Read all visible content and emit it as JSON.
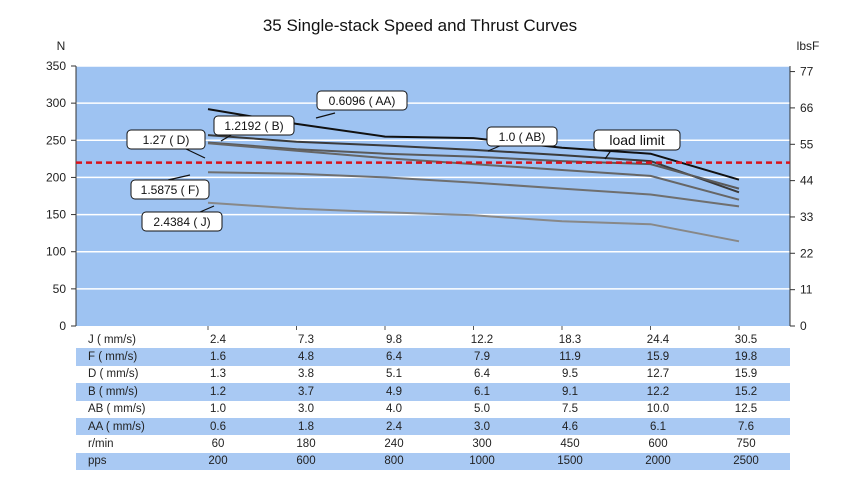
{
  "chart_data": {
    "type": "line",
    "title": "35 Single-stack Speed and Thrust Curves",
    "ylabel_left": "N",
    "ylabel_right": "lbsF",
    "ylim": [
      0,
      350
    ],
    "yticks_left": [
      0,
      50,
      100,
      150,
      200,
      250,
      300,
      350
    ],
    "yticks_right": [
      {
        "value": 0,
        "label": "0"
      },
      {
        "value": 48.9,
        "label": "11"
      },
      {
        "value": 97.9,
        "label": "22"
      },
      {
        "value": 146.8,
        "label": "33"
      },
      {
        "value": 195.7,
        "label": "44"
      },
      {
        "value": 244.6,
        "label": "55"
      },
      {
        "value": 293.6,
        "label": "66"
      },
      {
        "value": 342.5,
        "label": "77"
      }
    ],
    "x_steps": [
      200,
      600,
      800,
      1000,
      1500,
      2000,
      2500
    ],
    "load_limit": {
      "value": 220,
      "label": "load limit"
    },
    "series": [
      {
        "name": "0.6096 ( AA)",
        "x": [
          200,
          600,
          800,
          1000,
          1500,
          2000,
          2500
        ],
        "values": [
          292,
          272,
          255,
          253,
          240,
          232,
          197
        ],
        "color": "#111111",
        "width": 2
      },
      {
        "name": "1.2192 ( B)",
        "x": [
          200,
          600,
          800,
          1000,
          1500,
          2000,
          2500
        ],
        "values": [
          257,
          248,
          243,
          237,
          230,
          222,
          180
        ],
        "color": "#3a3a3a",
        "width": 2
      },
      {
        "name": "1.0 ( AB)",
        "x": [
          200,
          600,
          800,
          1000,
          1500,
          2000,
          2500
        ],
        "values": [
          247,
          238,
          232,
          228,
          222,
          218,
          185
        ],
        "color": "#5a5a5a",
        "width": 2
      },
      {
        "name": "1.27 ( D)",
        "x": [
          200,
          600,
          800,
          1000,
          1500,
          2000,
          2500
        ],
        "values": [
          246,
          236,
          226,
          218,
          210,
          202,
          170
        ],
        "color": "#666666",
        "width": 2
      },
      {
        "name": "1.5875 ( F)",
        "x": [
          200,
          600,
          800,
          1000,
          1500,
          2000,
          2500
        ],
        "values": [
          207,
          205,
          200,
          193,
          185,
          177,
          161
        ],
        "color": "#6f6f6f",
        "width": 2
      },
      {
        "name": "2.4384 ( J)",
        "x": [
          200,
          600,
          800,
          1000,
          1500,
          2000,
          2500
        ],
        "values": [
          166,
          158,
          153,
          149,
          141,
          137,
          114
        ],
        "color": "#888888",
        "width": 2
      }
    ],
    "callouts": [
      "0.6096 ( AA)",
      "1.2192 ( B)",
      "1.0 ( AB)",
      "1.27 ( D)",
      "1.5875 ( F)",
      "2.4384 ( J)"
    ]
  },
  "table": {
    "rows": [
      {
        "label": "J ( mm/s)",
        "values": [
          "2.4",
          "7.3",
          "9.8",
          "12.2",
          "18.3",
          "24.4",
          "30.5"
        ]
      },
      {
        "label": "F ( mm/s)",
        "values": [
          "1.6",
          "4.8",
          "6.4",
          "7.9",
          "11.9",
          "15.9",
          "19.8"
        ]
      },
      {
        "label": "D ( mm/s)",
        "values": [
          "1.3",
          "3.8",
          "5.1",
          "6.4",
          "9.5",
          "12.7",
          "15.9"
        ]
      },
      {
        "label": "B ( mm/s)",
        "values": [
          "1.2",
          "3.7",
          "4.9",
          "6.1",
          "9.1",
          "12.2",
          "15.2"
        ]
      },
      {
        "label": "AB ( mm/s)",
        "values": [
          "1.0",
          "3.0",
          "4.0",
          "5.0",
          "7.5",
          "10.0",
          "12.5"
        ]
      },
      {
        "label": "AA ( mm/s)",
        "values": [
          "0.6",
          "1.8",
          "2.4",
          "3.0",
          "4.6",
          "6.1",
          "7.6"
        ]
      },
      {
        "label": "r/min",
        "values": [
          "60",
          "180",
          "240",
          "300",
          "450",
          "600",
          "750"
        ]
      },
      {
        "label": "pps",
        "values": [
          "200",
          "600",
          "800",
          "1000",
          "1500",
          "2000",
          "2500"
        ]
      }
    ]
  },
  "colors": {
    "plot_bg": "#9ec3f2",
    "grid": "#ffffff",
    "load_limit": "#d9121b",
    "table_alt": "#a9c9f3"
  }
}
